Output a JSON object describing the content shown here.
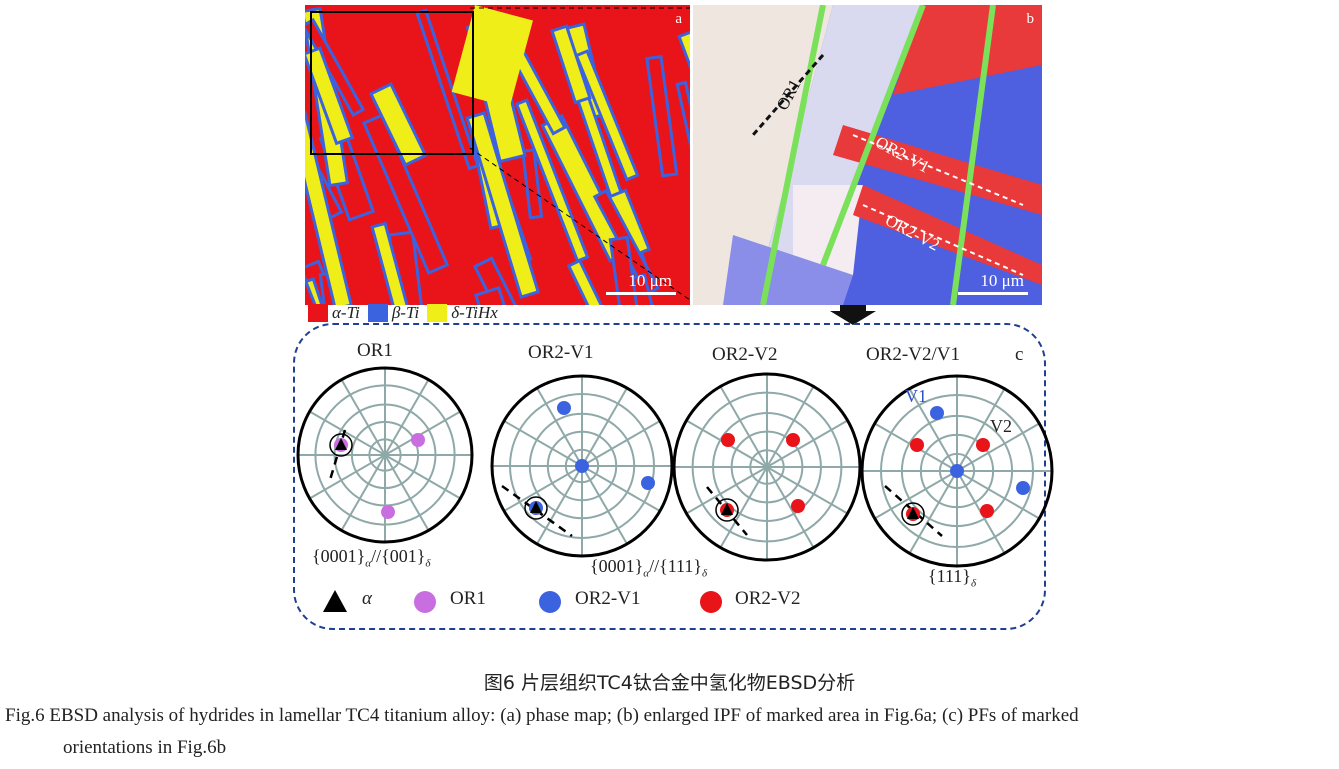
{
  "panel_a": {
    "label": "a",
    "scale": "10 μm",
    "colors": {
      "alpha": "#e8141a",
      "beta": "#3b63e0",
      "delta": "#f0ee18"
    }
  },
  "panel_b": {
    "label": "b",
    "scale": "10 μm",
    "annotations": [
      "OR1",
      "OR2-V1",
      "OR2-V2"
    ]
  },
  "legend": [
    {
      "label": "α-Ti",
      "color": "#e8141a"
    },
    {
      "label": "β-Ti",
      "color": "#3b63e0"
    },
    {
      "label": "δ-TiHx",
      "color": "#f0ee18"
    }
  ],
  "panel_c": {
    "label": "c",
    "pole_figures": [
      {
        "title": "OR1"
      },
      {
        "title": "OR2-V1"
      },
      {
        "title": "OR2-V2"
      },
      {
        "title": "OR2-V2/V1",
        "tags": [
          "V1",
          "V2"
        ]
      }
    ],
    "captions": {
      "c1": "{0001}",
      "c1s": "α",
      "c1b": "//{001}",
      "c1t": "δ",
      "c2": "{0001}",
      "c2s": "α",
      "c2b": "//{111}",
      "c2t": "δ",
      "c3": "{111}",
      "c3t": "δ"
    },
    "legend": [
      {
        "label": "α",
        "symbol": "triangle",
        "color": "#000"
      },
      {
        "label": "OR1",
        "color": "#c86ee0"
      },
      {
        "label": "OR2-V1",
        "color": "#3b63e0"
      },
      {
        "label": "OR2-V2",
        "color": "#e8141a"
      }
    ]
  },
  "caption_cn": "图6  片层组织TC4钛合金中氢化物EBSD分析",
  "caption_en_1": "Fig.6  EBSD analysis of hydrides in lamellar TC4 titanium alloy: (a) phase map; (b) enlarged IPF of marked area in Fig.6a; (c) PFs of marked",
  "caption_en_2": "orientations in Fig.6b"
}
